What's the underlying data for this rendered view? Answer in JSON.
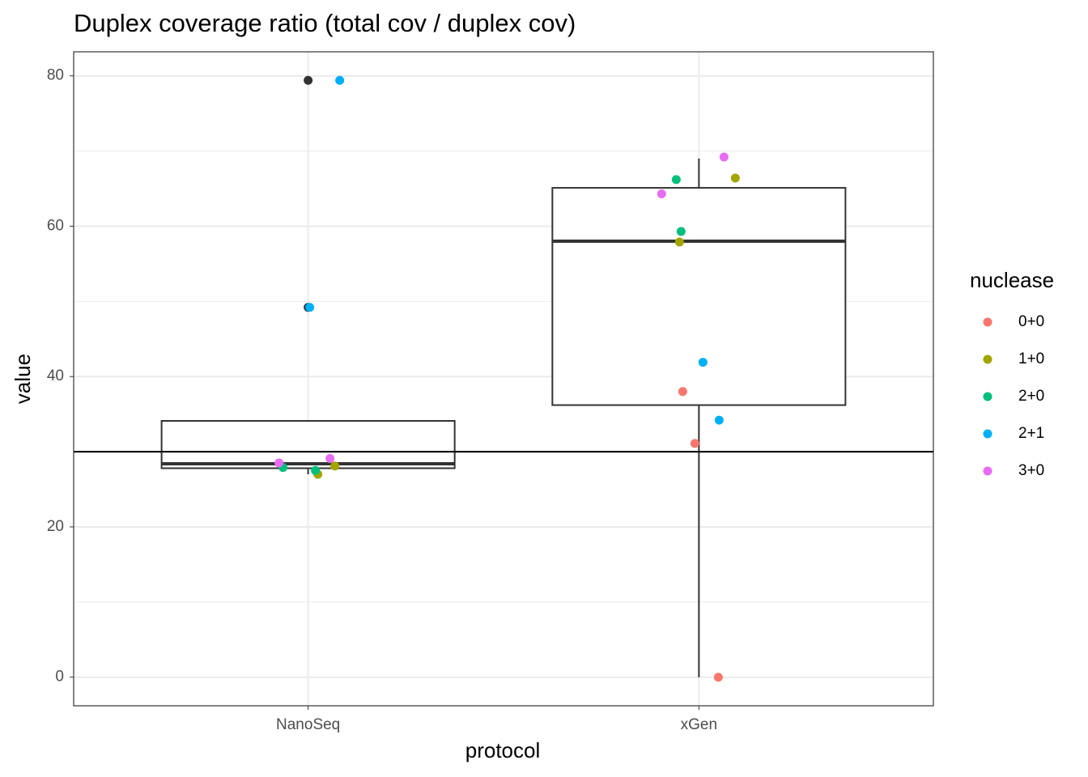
{
  "chart_data": {
    "type": "boxplot",
    "title": "Duplex coverage ratio (total cov / duplex cov)",
    "x_label": "protocol",
    "y_label": "value",
    "categories": [
      "NanoSeq",
      "xGen"
    ],
    "ylim": [
      -3.8,
      83.2
    ],
    "yticks": [
      0,
      20,
      40,
      60,
      80
    ],
    "grid": true,
    "hline": 30,
    "boxes": [
      {
        "whislo": 27.0,
        "q1": 27.8,
        "median": 28.4,
        "q3": 34.1,
        "whishi": 34.1,
        "outliers": [
          49.2,
          79.4
        ]
      },
      {
        "whislo": 0,
        "q1": 36.2,
        "median": 58.0,
        "q3": 65.1,
        "whishi": 69.0,
        "outliers": []
      }
    ],
    "legend_title": "nuclease",
    "series": [
      {
        "name": "0+0",
        "color": "#F8766D",
        "x": [
          "xGen",
          "xGen",
          "xGen"
        ],
        "values": [
          38.0,
          31.1,
          0
        ]
      },
      {
        "name": "1+0",
        "color": "#A3A500",
        "x": [
          "NanoSeq",
          "NanoSeq",
          "xGen",
          "xGen"
        ],
        "values": [
          27.0,
          28.1,
          66.4,
          57.9
        ]
      },
      {
        "name": "2+0",
        "color": "#00BF7D",
        "x": [
          "NanoSeq",
          "NanoSeq",
          "xGen",
          "xGen"
        ],
        "values": [
          27.9,
          27.5,
          66.2,
          59.3
        ]
      },
      {
        "name": "2+1",
        "color": "#00B0F6",
        "x": [
          "NanoSeq",
          "NanoSeq",
          "xGen",
          "xGen"
        ],
        "values": [
          79.4,
          49.2,
          41.9,
          34.2
        ]
      },
      {
        "name": "3+0",
        "color": "#E76BF3",
        "x": [
          "NanoSeq",
          "NanoSeq",
          "xGen",
          "xGen"
        ],
        "values": [
          28.5,
          29.1,
          69.2,
          64.3
        ]
      }
    ]
  }
}
